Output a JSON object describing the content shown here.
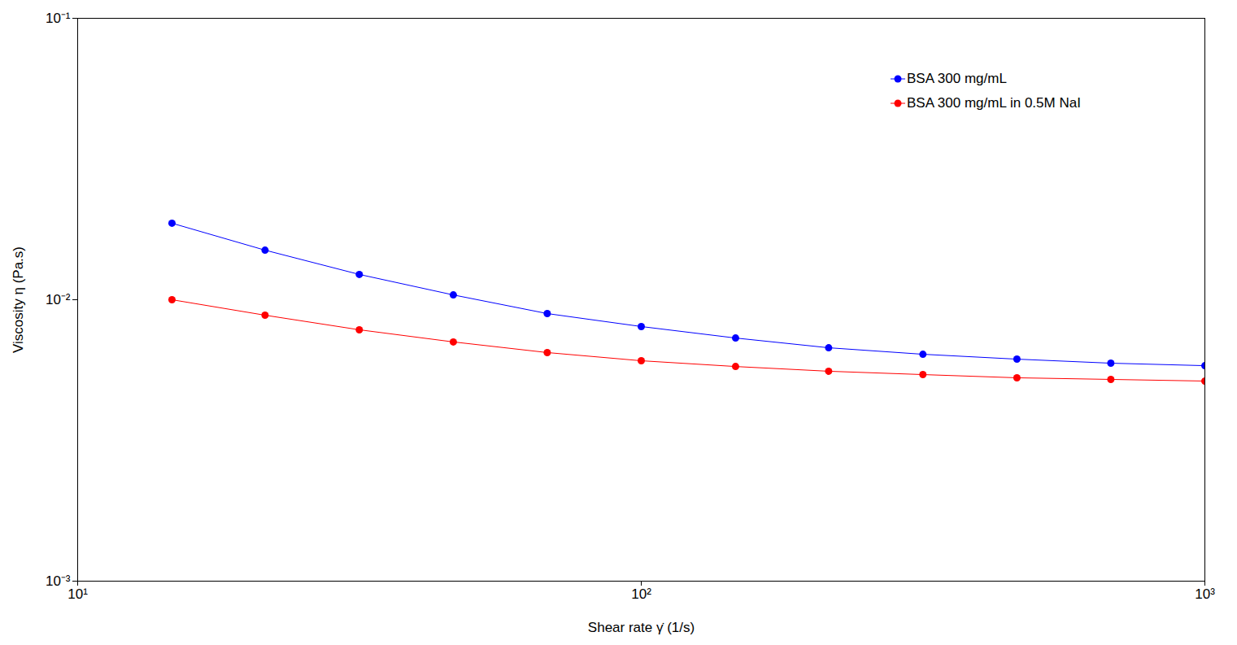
{
  "chart_data": {
    "type": "line",
    "x_label": "Shear rate γ̇ (1/s)",
    "y_label": "Viscosity η (Pa.s)",
    "log": true,
    "grid": false,
    "legend": "top-right",
    "marker": "circle",
    "line_style": "solid",
    "xlim": [
      10,
      1000
    ],
    "ylim": [
      0.001,
      0.1
    ],
    "xticks": [
      {
        "value": 10,
        "label": "10¹"
      },
      {
        "value": 100,
        "label": "10²"
      },
      {
        "value": 1000,
        "label": "10³"
      }
    ],
    "yticks": [
      {
        "value": 0.001,
        "label": "10⁻³"
      },
      {
        "value": 0.01,
        "label": "10⁻²"
      },
      {
        "value": 0.1,
        "label": "10⁻¹"
      }
    ],
    "x": [
      14.7,
      21.5,
      31.6,
      46.4,
      68.1,
      100,
      147,
      215,
      316,
      464,
      681,
      1000
    ],
    "series": [
      {
        "name": "BSA 300 mg/mL",
        "color": "#0000ff",
        "values": [
          0.0187,
          0.015,
          0.0123,
          0.0104,
          0.00893,
          0.00803,
          0.00731,
          0.00675,
          0.0064,
          0.00615,
          0.00595,
          0.00583
        ]
      },
      {
        "name": "BSA 300 mg/mL in 0.5M NaI",
        "color": "#ff0000",
        "values": [
          0.01,
          0.00881,
          0.00782,
          0.00708,
          0.00649,
          0.00607,
          0.00579,
          0.00557,
          0.00542,
          0.00528,
          0.00521,
          0.00514
        ]
      }
    ]
  }
}
